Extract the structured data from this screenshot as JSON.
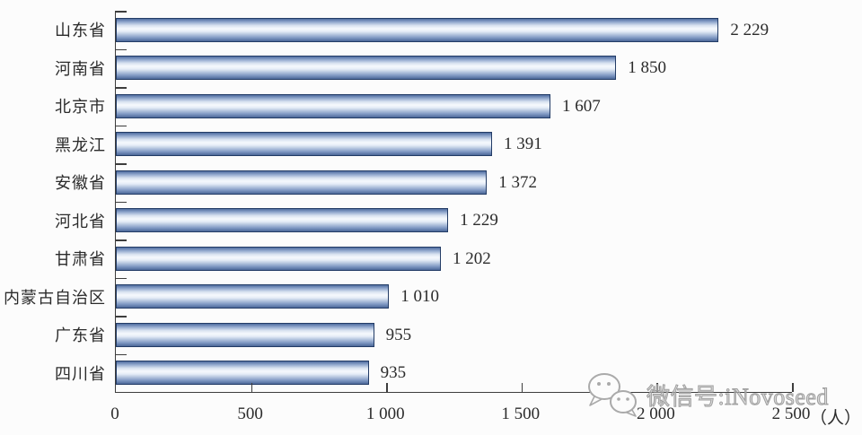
{
  "chart_data": {
    "type": "bar",
    "orientation": "horizontal",
    "title": "",
    "xlabel": "",
    "ylabel": "",
    "x_unit": "（人）",
    "xlim": [
      0,
      2500
    ],
    "grid": false,
    "legend": false,
    "categories": [
      "山东省",
      "河南省",
      "北京市",
      "黑龙江",
      "安徽省",
      "河北省",
      "甘肃省",
      "内蒙古自治区",
      "广东省",
      "四川省"
    ],
    "values": [
      2229,
      1850,
      1607,
      1391,
      1372,
      1229,
      1202,
      1010,
      955,
      935
    ],
    "value_labels": [
      "2 229",
      "1 850",
      "1 607",
      "1 391",
      "1 372",
      "1 229",
      "1 202",
      "1 010",
      "955",
      "935"
    ],
    "x_ticks": [
      0,
      500,
      1000,
      1500,
      2000,
      2500
    ],
    "x_tick_labels": [
      "0",
      "500",
      "1 000",
      "1 500",
      "2 000",
      "2 500"
    ]
  },
  "watermark": {
    "icon": "wechat-bubbles-icon",
    "text": "微信号:iNovoseed"
  },
  "colors": {
    "bar_edge": "#4f6c9f",
    "bar_highlight": "#f6f9fd",
    "bar_border": "#233c66",
    "axis": "#3d3d3d",
    "text": "#2b2b2b",
    "watermark": "#a5a5a5",
    "background": "#fcfcfc"
  }
}
